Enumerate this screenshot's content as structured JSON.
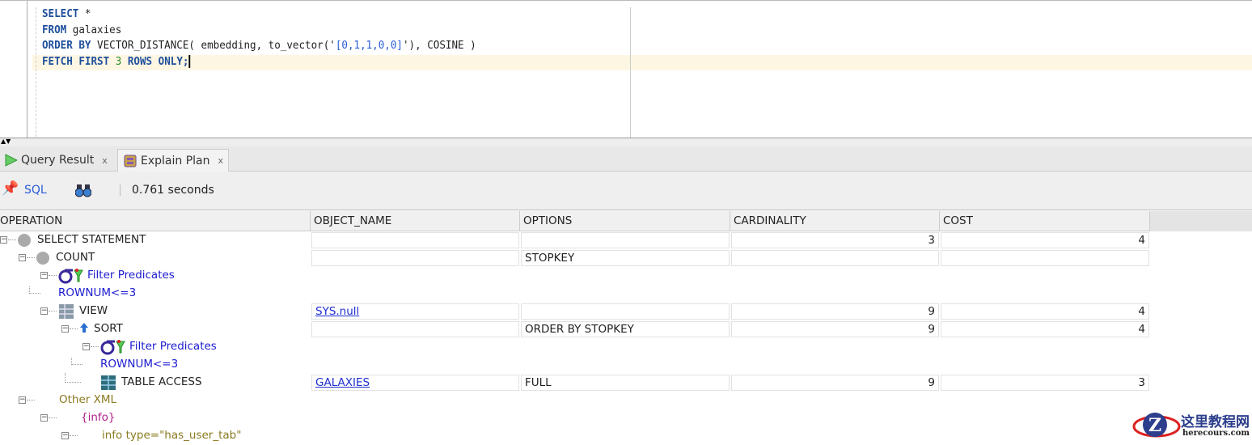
{
  "editor": {
    "lines": [
      [
        {
          "t": "SELECT",
          "c": "kw"
        },
        {
          "t": " *",
          "c": ""
        }
      ],
      [
        {
          "t": "FROM",
          "c": "kw"
        },
        {
          "t": " galaxies",
          "c": ""
        }
      ],
      [
        {
          "t": "ORDER BY",
          "c": "kw"
        },
        {
          "t": " VECTOR_DISTANCE( embedding, to_vector('",
          "c": ""
        },
        {
          "t": "[0,1,1,0,0]",
          "c": "str"
        },
        {
          "t": "'), COSINE )",
          "c": ""
        }
      ],
      [
        {
          "t": "FETCH FIRST ",
          "c": "kw"
        },
        {
          "t": "3",
          "c": "num"
        },
        {
          "t": " ROWS ONLY;",
          "c": "kw"
        }
      ]
    ]
  },
  "tabs": [
    {
      "label": "Query Result",
      "icon": "play-icon",
      "active": false
    },
    {
      "label": "Explain Plan",
      "icon": "explain-plan-icon",
      "active": true
    }
  ],
  "toolbar": {
    "sql_label": "SQL",
    "elapsed": "0.761 seconds"
  },
  "columns": [
    "OPERATION",
    "OBJECT_NAME",
    "OPTIONS",
    "CARDINALITY",
    "COST"
  ],
  "rows": [
    {
      "op": "SELECT STATEMENT",
      "level": 0,
      "icon": "circle",
      "style": "",
      "object": "",
      "options": "",
      "cardinality": "3",
      "cost": "4",
      "cells": true
    },
    {
      "op": "COUNT",
      "level": 1,
      "icon": "circle",
      "style": "",
      "object": "",
      "options": "STOPKEY",
      "cardinality": "",
      "cost": "",
      "cells": true
    },
    {
      "op": "Filter Predicates",
      "level": 2,
      "icon": "filter",
      "style": "blue",
      "cells": false
    },
    {
      "op": "ROWNUM<=3",
      "level": 3,
      "icon": "leaf",
      "style": "blue",
      "cells": false
    },
    {
      "op": "VIEW",
      "level": 2,
      "icon": "view",
      "style": "",
      "object": "SYS.null",
      "options": "",
      "cardinality": "9",
      "cost": "4",
      "cells": true
    },
    {
      "op": "SORT",
      "level": 3,
      "icon": "sort",
      "style": "",
      "object": "",
      "options": "ORDER BY STOPKEY",
      "cardinality": "9",
      "cost": "4",
      "cells": true
    },
    {
      "op": "Filter Predicates",
      "level": 4,
      "icon": "filter",
      "style": "blue",
      "cells": false
    },
    {
      "op": "ROWNUM<=3",
      "level": 5,
      "icon": "leaf",
      "style": "blue",
      "cells": false
    },
    {
      "op": "TABLE ACCESS",
      "level": 4,
      "icon": "table",
      "style": "",
      "object": "GALAXIES",
      "options": "FULL",
      "cardinality": "9",
      "cost": "3",
      "cells": true,
      "noexp": true
    },
    {
      "op": "Other XML",
      "level": 1,
      "icon": "none",
      "style": "olive",
      "cells": false
    },
    {
      "op": "{info}",
      "level": 2,
      "icon": "none",
      "style": "purple",
      "cells": false
    },
    {
      "op": "info type=\"has_user_tab\"",
      "level": 3,
      "icon": "none",
      "style": "olive",
      "cells": false
    }
  ],
  "watermark": {
    "text": "这里教程网",
    "url_text": "herecours.com"
  }
}
